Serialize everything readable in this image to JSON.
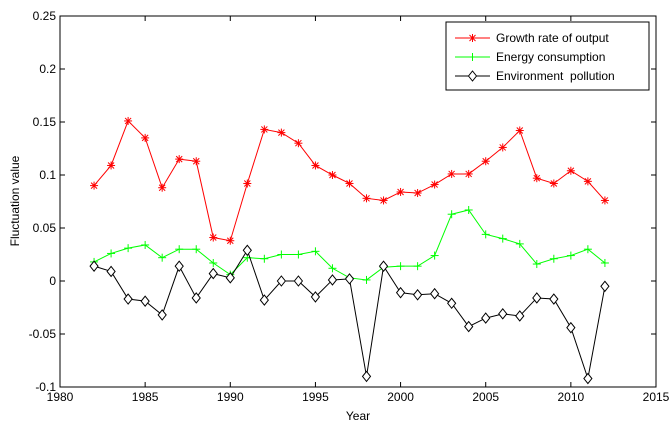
{
  "chart_data": {
    "type": "line",
    "title": "",
    "xlabel": "Year",
    "ylabel": "Fluctuation value",
    "xlim": [
      1980,
      2015
    ],
    "ylim": [
      -0.1,
      0.25
    ],
    "xticks": [
      1980,
      1985,
      1990,
      1995,
      2000,
      2005,
      2010,
      2015
    ],
    "yticks": [
      -0.1,
      -0.05,
      0,
      0.05,
      0.1,
      0.15,
      0.2,
      0.25
    ],
    "xtick_labels": [
      "1980",
      "1985",
      "1990",
      "1995",
      "2000",
      "2005",
      "2010",
      "2015"
    ],
    "ytick_labels": [
      "-0.1",
      "-0.05",
      "0",
      "0.05",
      "0.1",
      "0.15",
      "0.2",
      "0.25"
    ],
    "grid": false,
    "legend_position": "top-right",
    "x": [
      1982,
      1983,
      1984,
      1985,
      1986,
      1987,
      1988,
      1989,
      1990,
      1991,
      1992,
      1993,
      1994,
      1995,
      1996,
      1997,
      1998,
      1999,
      2000,
      2001,
      2002,
      2003,
      2004,
      2005,
      2006,
      2007,
      2008,
      2009,
      2010,
      2011,
      2012
    ],
    "series": [
      {
        "name": "Growth rate of output",
        "color": "#ff0000",
        "marker": "asterisk",
        "values": [
          0.09,
          0.109,
          0.151,
          0.135,
          0.088,
          0.115,
          0.113,
          0.041,
          0.038,
          0.092,
          0.143,
          0.14,
          0.13,
          0.109,
          0.1,
          0.092,
          0.078,
          0.076,
          0.084,
          0.083,
          0.091,
          0.101,
          0.101,
          0.113,
          0.126,
          0.142,
          0.097,
          0.092,
          0.104,
          0.094,
          0.076
        ]
      },
      {
        "name": "Energy consumption",
        "color": "#00ff00",
        "marker": "plus",
        "values": [
          0.018,
          0.026,
          0.031,
          0.034,
          0.022,
          0.03,
          0.03,
          0.017,
          0.006,
          0.022,
          0.021,
          0.025,
          0.025,
          0.028,
          0.012,
          0.003,
          0.001,
          0.013,
          0.014,
          0.014,
          0.024,
          0.063,
          0.067,
          0.044,
          0.04,
          0.035,
          0.016,
          0.021,
          0.024,
          0.03,
          0.017
        ]
      },
      {
        "name": "Environment  pollution",
        "color": "#000000",
        "marker": "diamond",
        "values": [
          0.014,
          0.009,
          -0.017,
          -0.019,
          -0.032,
          0.014,
          -0.016,
          0.007,
          0.003,
          0.029,
          -0.018,
          0.0,
          0.0,
          -0.015,
          0.001,
          0.002,
          -0.09,
          0.014,
          -0.011,
          -0.013,
          -0.012,
          -0.021,
          -0.043,
          -0.035,
          -0.031,
          -0.033,
          -0.016,
          -0.017,
          -0.044,
          -0.092,
          -0.005
        ]
      }
    ]
  }
}
